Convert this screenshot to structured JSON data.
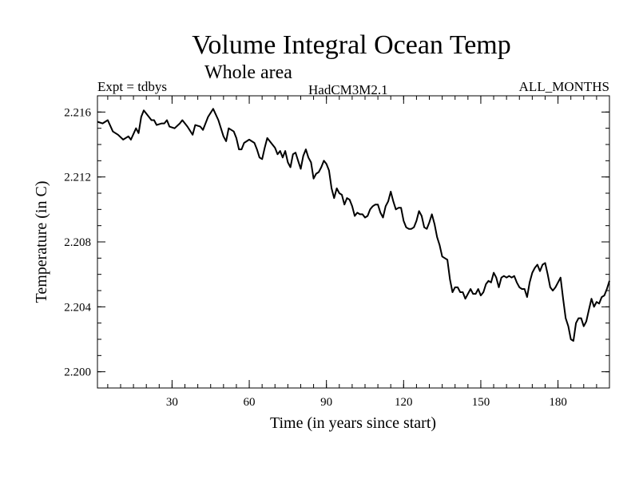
{
  "header": {
    "title": "Volume Integral Ocean Temp",
    "subtitle": "Whole area",
    "expt": "Expt = tdbys",
    "model": "HadCM3M2.1",
    "months": "ALL_MONTHS"
  },
  "chart_data": {
    "type": "line",
    "title": "Volume Integral Ocean Temp",
    "subtitle": "Whole area",
    "xlabel": "Time (in years since start)",
    "ylabel": "Temperature (in C)",
    "xlim": [
      1,
      200
    ],
    "ylim": [
      2.199,
      2.217
    ],
    "x_ticks": [
      30,
      60,
      90,
      120,
      150,
      180
    ],
    "y_ticks": [
      2.2,
      2.204,
      2.208,
      2.212,
      2.216
    ],
    "y_tick_labels": [
      "2.200",
      "2.204",
      "2.208",
      "2.212",
      "2.216"
    ],
    "grid": false,
    "series": [
      {
        "points": [
          [
            1,
            2.2154
          ],
          [
            3,
            2.2153
          ],
          [
            5,
            2.2155
          ],
          [
            7,
            2.2148
          ],
          [
            9,
            2.2146
          ],
          [
            11,
            2.2143
          ],
          [
            13,
            2.2145
          ],
          [
            14,
            2.2143
          ],
          [
            16,
            2.215
          ],
          [
            17,
            2.2147
          ],
          [
            18,
            2.2157
          ],
          [
            19,
            2.2161
          ],
          [
            21,
            2.2157
          ],
          [
            22,
            2.2155
          ],
          [
            23,
            2.2155
          ],
          [
            24,
            2.2152
          ],
          [
            26,
            2.2153
          ],
          [
            27,
            2.2153
          ],
          [
            28,
            2.2155
          ],
          [
            29,
            2.2151
          ],
          [
            31,
            2.215
          ],
          [
            33,
            2.2153
          ],
          [
            34,
            2.2155
          ],
          [
            36,
            2.2151
          ],
          [
            38,
            2.2146
          ],
          [
            39,
            2.2152
          ],
          [
            41,
            2.2151
          ],
          [
            42,
            2.2149
          ],
          [
            44,
            2.2157
          ],
          [
            46,
            2.2162
          ],
          [
            48,
            2.2155
          ],
          [
            50,
            2.2145
          ],
          [
            51,
            2.2142
          ],
          [
            52,
            2.215
          ],
          [
            54,
            2.2148
          ],
          [
            55,
            2.2144
          ],
          [
            56,
            2.2137
          ],
          [
            57,
            2.2137
          ],
          [
            58,
            2.2141
          ],
          [
            60,
            2.2143
          ],
          [
            62,
            2.2141
          ],
          [
            63,
            2.2137
          ],
          [
            64,
            2.2132
          ],
          [
            65,
            2.2131
          ],
          [
            66,
            2.2138
          ],
          [
            67,
            2.2144
          ],
          [
            69,
            2.214
          ],
          [
            70,
            2.2138
          ],
          [
            71,
            2.2134
          ],
          [
            72,
            2.2136
          ],
          [
            73,
            2.2132
          ],
          [
            74,
            2.2136
          ],
          [
            75,
            2.2129
          ],
          [
            76,
            2.2126
          ],
          [
            77,
            2.2134
          ],
          [
            78,
            2.2135
          ],
          [
            79,
            2.213
          ],
          [
            80,
            2.2125
          ],
          [
            81,
            2.2133
          ],
          [
            82,
            2.2137
          ],
          [
            83,
            2.2132
          ],
          [
            84,
            2.2129
          ],
          [
            85,
            2.2119
          ],
          [
            86,
            2.2122
          ],
          [
            87,
            2.2123
          ],
          [
            88,
            2.2126
          ],
          [
            89,
            2.213
          ],
          [
            90,
            2.2128
          ],
          [
            91,
            2.2124
          ],
          [
            92,
            2.2113
          ],
          [
            93,
            2.2107
          ],
          [
            94,
            2.2113
          ],
          [
            95,
            2.211
          ],
          [
            96,
            2.2109
          ],
          [
            97,
            2.2103
          ],
          [
            98,
            2.2107
          ],
          [
            99,
            2.2106
          ],
          [
            100,
            2.2102
          ],
          [
            101,
            2.2096
          ],
          [
            102,
            2.2098
          ],
          [
            103,
            2.2097
          ],
          [
            104,
            2.2097
          ],
          [
            105,
            2.2095
          ],
          [
            106,
            2.2096
          ],
          [
            107,
            2.21
          ],
          [
            108,
            2.2102
          ],
          [
            109,
            2.2103
          ],
          [
            110,
            2.2103
          ],
          [
            111,
            2.2098
          ],
          [
            112,
            2.2095
          ],
          [
            113,
            2.2102
          ],
          [
            114,
            2.2105
          ],
          [
            115,
            2.2111
          ],
          [
            116,
            2.2105
          ],
          [
            117,
            2.21
          ],
          [
            118,
            2.2101
          ],
          [
            119,
            2.2101
          ],
          [
            120,
            2.2093
          ],
          [
            121,
            2.2089
          ],
          [
            122,
            2.2088
          ],
          [
            123,
            2.2088
          ],
          [
            124,
            2.2089
          ],
          [
            125,
            2.2093
          ],
          [
            126,
            2.2099
          ],
          [
            127,
            2.2096
          ],
          [
            128,
            2.2089
          ],
          [
            129,
            2.2088
          ],
          [
            130,
            2.2092
          ],
          [
            131,
            2.2097
          ],
          [
            132,
            2.2091
          ],
          [
            133,
            2.2083
          ],
          [
            134,
            2.2078
          ],
          [
            135,
            2.2071
          ],
          [
            136,
            2.207
          ],
          [
            137,
            2.2069
          ],
          [
            138,
            2.2057
          ],
          [
            139,
            2.2049
          ],
          [
            140,
            2.2052
          ],
          [
            141,
            2.2052
          ],
          [
            142,
            2.2049
          ],
          [
            143,
            2.2049
          ],
          [
            144,
            2.2045
          ],
          [
            145,
            2.2048
          ],
          [
            146,
            2.2051
          ],
          [
            147,
            2.2048
          ],
          [
            148,
            2.2048
          ],
          [
            149,
            2.2051
          ],
          [
            150,
            2.2047
          ],
          [
            151,
            2.2049
          ],
          [
            152,
            2.2054
          ],
          [
            153,
            2.2056
          ],
          [
            154,
            2.2055
          ],
          [
            155,
            2.2061
          ],
          [
            156,
            2.2058
          ],
          [
            157,
            2.2052
          ],
          [
            158,
            2.2058
          ],
          [
            159,
            2.2059
          ],
          [
            160,
            2.2058
          ],
          [
            161,
            2.2059
          ],
          [
            162,
            2.2058
          ],
          [
            163,
            2.2059
          ],
          [
            164,
            2.2055
          ],
          [
            165,
            2.2052
          ],
          [
            166,
            2.2051
          ],
          [
            167,
            2.2051
          ],
          [
            168,
            2.2046
          ],
          [
            169,
            2.2055
          ],
          [
            170,
            2.2061
          ],
          [
            171,
            2.2064
          ],
          [
            172,
            2.2066
          ],
          [
            173,
            2.2062
          ],
          [
            174,
            2.2066
          ],
          [
            175,
            2.2067
          ],
          [
            176,
            2.206
          ],
          [
            177,
            2.2052
          ],
          [
            178,
            2.205
          ],
          [
            179,
            2.2052
          ],
          [
            180,
            2.2055
          ],
          [
            181,
            2.2058
          ],
          [
            182,
            2.2045
          ],
          [
            183,
            2.2033
          ],
          [
            184,
            2.2028
          ],
          [
            185,
            2.202
          ],
          [
            186,
            2.2019
          ],
          [
            187,
            2.203
          ],
          [
            188,
            2.2033
          ],
          [
            189,
            2.2033
          ],
          [
            190,
            2.2028
          ],
          [
            191,
            2.2031
          ],
          [
            192,
            2.2038
          ],
          [
            193,
            2.2045
          ],
          [
            194,
            2.204
          ],
          [
            195,
            2.2043
          ],
          [
            196,
            2.2042
          ],
          [
            197,
            2.2046
          ],
          [
            198,
            2.2047
          ],
          [
            199,
            2.2051
          ],
          [
            200,
            2.2056
          ]
        ]
      }
    ]
  }
}
